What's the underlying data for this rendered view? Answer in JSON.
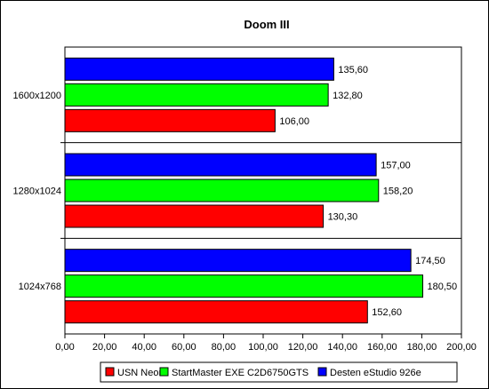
{
  "chart_data": {
    "type": "bar",
    "orientation": "horizontal",
    "title": "Doom III",
    "xlabel": "",
    "ylabel": "",
    "xlim": [
      0,
      200
    ],
    "x_ticks": [
      "0,00",
      "20,00",
      "40,00",
      "60,00",
      "80,00",
      "100,00",
      "120,00",
      "140,00",
      "160,00",
      "180,00",
      "200,00"
    ],
    "categories": [
      "1600x1200",
      "1280x1024",
      "1024x768"
    ],
    "series": [
      {
        "name": "USN Neon",
        "color": "#ff0000",
        "values": [
          106.0,
          130.3,
          152.6
        ],
        "labels": [
          "106,00",
          "130,30",
          "152,60"
        ]
      },
      {
        "name": "StartMaster EXE C2D6750GTS",
        "color": "#00ff00",
        "values": [
          132.8,
          158.2,
          180.5
        ],
        "labels": [
          "132,80",
          "158,20",
          "180,50"
        ]
      },
      {
        "name": "Desten eStudio 926e",
        "color": "#0000ff",
        "values": [
          135.6,
          157.0,
          174.5
        ],
        "labels": [
          "135,60",
          "157,00",
          "174,50"
        ]
      }
    ],
    "grid": false,
    "legend_position": "bottom"
  }
}
